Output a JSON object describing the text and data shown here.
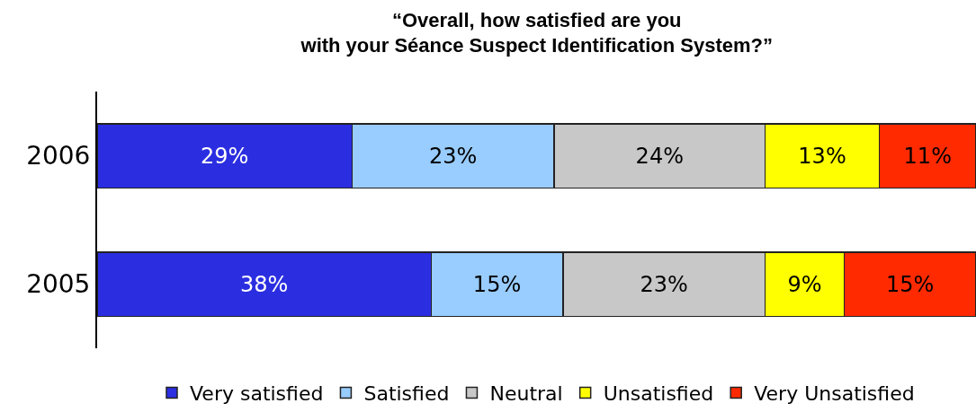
{
  "chart_data": {
    "type": "bar",
    "title": "“Overall, how satisfied are you\nwith your Séance Suspect Identification System?”",
    "orientation": "horizontal",
    "stacked": true,
    "categories": [
      "2006",
      "2005"
    ],
    "tick_labels": "y",
    "legend": "bottom",
    "series": [
      {
        "name": "Very satisfied",
        "color": "#2b2ee0",
        "values": [
          29,
          38
        ],
        "value_labels": [
          "29%",
          "38%"
        ]
      },
      {
        "name": "Satisfied",
        "color": "#99ccff",
        "values": [
          23,
          15
        ],
        "value_labels": [
          "23%",
          "15%"
        ]
      },
      {
        "name": "Neutral",
        "color": "#c8c8c8",
        "values": [
          24,
          23
        ],
        "value_labels": [
          "24%",
          "23%"
        ]
      },
      {
        "name": "Unsatisfied",
        "color": "#ffff00",
        "values": [
          13,
          9
        ],
        "value_labels": [
          "13%",
          "9%"
        ]
      },
      {
        "name": "Very Unsatisfied",
        "color": "#ff2a00",
        "values": [
          11,
          15
        ],
        "value_labels": [
          "11%",
          "15%"
        ]
      }
    ]
  }
}
